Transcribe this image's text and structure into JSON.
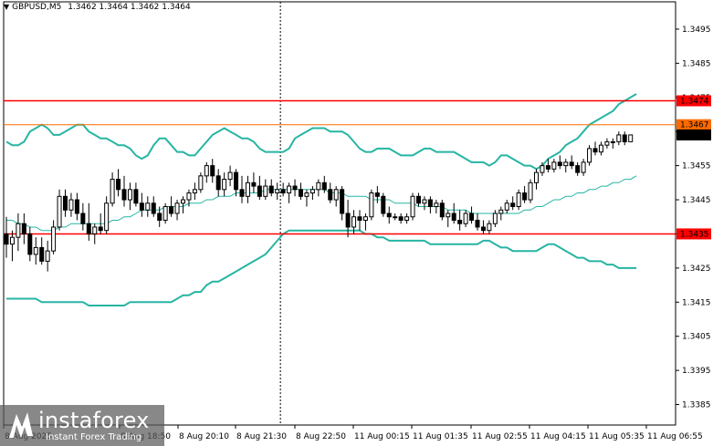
{
  "header": {
    "symbol": "GBPUSD,M5",
    "ohlc": "1.3462 1.3464 1.3462 1.3464"
  },
  "logo": {
    "brand": "instaforex",
    "tagline": "Instant Forex Trading"
  },
  "colors": {
    "background": "#ffffff",
    "candle": "#000000",
    "bands": "#26b5a3",
    "resistance": "#ff0000",
    "bid": "#ff6a00",
    "price_tag": "#000000"
  },
  "chart_data": {
    "type": "candlestick",
    "symbol": "GBPUSD",
    "timeframe": "M5",
    "ylim": [
      1.3379,
      1.3503
    ],
    "y_ticks": [
      "1.3495",
      "1.3485",
      "1.3475",
      "1.3465",
      "1.3455",
      "1.3445",
      "1.3435",
      "1.3425",
      "1.3415",
      "1.3405",
      "1.3395",
      "1.3385"
    ],
    "x_ticks": [
      "8 Aug 2025",
      "8 Aug 18:50",
      "8 Aug 20:10",
      "8 Aug 21:30",
      "8 Aug 22:50",
      "11 Aug 00:15",
      "11 Aug 01:35",
      "11 Aug 02:55",
      "11 Aug 04:15",
      "11 Aug 05:35",
      "11 Aug 06:55"
    ],
    "horizontal_levels": [
      {
        "value": 1.3474,
        "label": "1.3474",
        "color": "#ff0000"
      },
      {
        "value": 1.3467,
        "label": "1.3467",
        "color": "#ff6a00"
      },
      {
        "value": 1.3435,
        "label": "1.3435",
        "color": "#ff0000"
      }
    ],
    "current_price": {
      "value": 1.3464,
      "label": "1.3464"
    },
    "session_separator_index": 47,
    "candles": [
      {
        "o": 1.3435,
        "h": 1.344,
        "l": 1.3428,
        "c": 1.3432
      },
      {
        "o": 1.3432,
        "h": 1.3436,
        "l": 1.3427,
        "c": 1.3434
      },
      {
        "o": 1.3434,
        "h": 1.3441,
        "l": 1.343,
        "c": 1.3438
      },
      {
        "o": 1.3438,
        "h": 1.3441,
        "l": 1.3432,
        "c": 1.3435
      },
      {
        "o": 1.3435,
        "h": 1.3437,
        "l": 1.3427,
        "c": 1.3429
      },
      {
        "o": 1.3429,
        "h": 1.3434,
        "l": 1.3426,
        "c": 1.3431
      },
      {
        "o": 1.3431,
        "h": 1.3434,
        "l": 1.3426,
        "c": 1.3427
      },
      {
        "o": 1.3427,
        "h": 1.3433,
        "l": 1.3424,
        "c": 1.343
      },
      {
        "o": 1.343,
        "h": 1.3439,
        "l": 1.3429,
        "c": 1.3437
      },
      {
        "o": 1.3437,
        "h": 1.3448,
        "l": 1.3436,
        "c": 1.3446
      },
      {
        "o": 1.3446,
        "h": 1.3448,
        "l": 1.344,
        "c": 1.3442
      },
      {
        "o": 1.3442,
        "h": 1.3447,
        "l": 1.344,
        "c": 1.3445
      },
      {
        "o": 1.3445,
        "h": 1.3447,
        "l": 1.3439,
        "c": 1.3441
      },
      {
        "o": 1.3441,
        "h": 1.3444,
        "l": 1.3436,
        "c": 1.3438
      },
      {
        "o": 1.3438,
        "h": 1.3444,
        "l": 1.3433,
        "c": 1.3435
      },
      {
        "o": 1.3435,
        "h": 1.3438,
        "l": 1.3432,
        "c": 1.3437
      },
      {
        "o": 1.3437,
        "h": 1.3441,
        "l": 1.3435,
        "c": 1.3436
      },
      {
        "o": 1.3436,
        "h": 1.3446,
        "l": 1.3435,
        "c": 1.3444
      },
      {
        "o": 1.3444,
        "h": 1.3453,
        "l": 1.3443,
        "c": 1.3451
      },
      {
        "o": 1.3451,
        "h": 1.3454,
        "l": 1.3446,
        "c": 1.3448
      },
      {
        "o": 1.3448,
        "h": 1.3452,
        "l": 1.3443,
        "c": 1.3445
      },
      {
        "o": 1.3445,
        "h": 1.345,
        "l": 1.3442,
        "c": 1.3448
      },
      {
        "o": 1.3448,
        "h": 1.345,
        "l": 1.3443,
        "c": 1.3444
      },
      {
        "o": 1.3444,
        "h": 1.3447,
        "l": 1.344,
        "c": 1.3442
      },
      {
        "o": 1.3442,
        "h": 1.3446,
        "l": 1.344,
        "c": 1.3444
      },
      {
        "o": 1.3444,
        "h": 1.3446,
        "l": 1.344,
        "c": 1.3441
      },
      {
        "o": 1.3441,
        "h": 1.3443,
        "l": 1.3437,
        "c": 1.3439
      },
      {
        "o": 1.3439,
        "h": 1.3444,
        "l": 1.3438,
        "c": 1.3443
      },
      {
        "o": 1.3443,
        "h": 1.3446,
        "l": 1.344,
        "c": 1.3441
      },
      {
        "o": 1.3441,
        "h": 1.3445,
        "l": 1.3439,
        "c": 1.3444
      },
      {
        "o": 1.3444,
        "h": 1.3446,
        "l": 1.3441,
        "c": 1.3445
      },
      {
        "o": 1.3445,
        "h": 1.3448,
        "l": 1.3443,
        "c": 1.3447
      },
      {
        "o": 1.3447,
        "h": 1.345,
        "l": 1.3445,
        "c": 1.3448
      },
      {
        "o": 1.3448,
        "h": 1.3453,
        "l": 1.3447,
        "c": 1.3452
      },
      {
        "o": 1.3452,
        "h": 1.3456,
        "l": 1.345,
        "c": 1.3455
      },
      {
        "o": 1.3455,
        "h": 1.3457,
        "l": 1.345,
        "c": 1.3452
      },
      {
        "o": 1.3452,
        "h": 1.3454,
        "l": 1.3446,
        "c": 1.3448
      },
      {
        "o": 1.3448,
        "h": 1.3453,
        "l": 1.3446,
        "c": 1.3451
      },
      {
        "o": 1.3451,
        "h": 1.3455,
        "l": 1.3449,
        "c": 1.3453
      },
      {
        "o": 1.3453,
        "h": 1.3454,
        "l": 1.3446,
        "c": 1.3448
      },
      {
        "o": 1.3448,
        "h": 1.3452,
        "l": 1.3444,
        "c": 1.3446
      },
      {
        "o": 1.3446,
        "h": 1.3452,
        "l": 1.3444,
        "c": 1.345
      },
      {
        "o": 1.345,
        "h": 1.3453,
        "l": 1.3447,
        "c": 1.3449
      },
      {
        "o": 1.3449,
        "h": 1.3452,
        "l": 1.3445,
        "c": 1.3446
      },
      {
        "o": 1.3446,
        "h": 1.3451,
        "l": 1.3445,
        "c": 1.3449
      },
      {
        "o": 1.3449,
        "h": 1.3451,
        "l": 1.3446,
        "c": 1.3447
      },
      {
        "o": 1.3447,
        "h": 1.345,
        "l": 1.3445,
        "c": 1.3448
      },
      {
        "o": 1.3448,
        "h": 1.345,
        "l": 1.3446,
        "c": 1.3447
      },
      {
        "o": 1.3447,
        "h": 1.345,
        "l": 1.3444,
        "c": 1.3449
      },
      {
        "o": 1.3449,
        "h": 1.3451,
        "l": 1.3446,
        "c": 1.3448
      },
      {
        "o": 1.3448,
        "h": 1.345,
        "l": 1.3445,
        "c": 1.3446
      },
      {
        "o": 1.3446,
        "h": 1.3448,
        "l": 1.3443,
        "c": 1.3447
      },
      {
        "o": 1.3447,
        "h": 1.3449,
        "l": 1.3445,
        "c": 1.3448
      },
      {
        "o": 1.3448,
        "h": 1.3451,
        "l": 1.3446,
        "c": 1.345
      },
      {
        "o": 1.345,
        "h": 1.3452,
        "l": 1.3447,
        "c": 1.3448
      },
      {
        "o": 1.3448,
        "h": 1.345,
        "l": 1.3444,
        "c": 1.3445
      },
      {
        "o": 1.3445,
        "h": 1.3449,
        "l": 1.3443,
        "c": 1.3448
      },
      {
        "o": 1.3448,
        "h": 1.3449,
        "l": 1.3439,
        "c": 1.3441
      },
      {
        "o": 1.3441,
        "h": 1.3445,
        "l": 1.3434,
        "c": 1.3437
      },
      {
        "o": 1.3437,
        "h": 1.3442,
        "l": 1.3435,
        "c": 1.344
      },
      {
        "o": 1.344,
        "h": 1.3442,
        "l": 1.3436,
        "c": 1.3439
      },
      {
        "o": 1.3439,
        "h": 1.3441,
        "l": 1.3436,
        "c": 1.344
      },
      {
        "o": 1.344,
        "h": 1.3448,
        "l": 1.3439,
        "c": 1.3447
      },
      {
        "o": 1.3447,
        "h": 1.3449,
        "l": 1.3444,
        "c": 1.3446
      },
      {
        "o": 1.3446,
        "h": 1.3447,
        "l": 1.344,
        "c": 1.3441
      },
      {
        "o": 1.3441,
        "h": 1.3443,
        "l": 1.3438,
        "c": 1.344
      },
      {
        "o": 1.344,
        "h": 1.3441,
        "l": 1.3439,
        "c": 1.344
      },
      {
        "o": 1.344,
        "h": 1.3441,
        "l": 1.3438,
        "c": 1.3439
      },
      {
        "o": 1.3439,
        "h": 1.3441,
        "l": 1.3438,
        "c": 1.344
      },
      {
        "o": 1.344,
        "h": 1.3447,
        "l": 1.3439,
        "c": 1.3446
      },
      {
        "o": 1.3446,
        "h": 1.3447,
        "l": 1.3443,
        "c": 1.3444
      },
      {
        "o": 1.3444,
        "h": 1.3446,
        "l": 1.3442,
        "c": 1.3445
      },
      {
        "o": 1.3445,
        "h": 1.3446,
        "l": 1.3441,
        "c": 1.3443
      },
      {
        "o": 1.3443,
        "h": 1.3445,
        "l": 1.3441,
        "c": 1.3444
      },
      {
        "o": 1.3444,
        "h": 1.3445,
        "l": 1.3439,
        "c": 1.344
      },
      {
        "o": 1.344,
        "h": 1.3442,
        "l": 1.3437,
        "c": 1.3441
      },
      {
        "o": 1.3441,
        "h": 1.3444,
        "l": 1.3438,
        "c": 1.3439
      },
      {
        "o": 1.3439,
        "h": 1.3442,
        "l": 1.3436,
        "c": 1.3438
      },
      {
        "o": 1.3438,
        "h": 1.3442,
        "l": 1.3437,
        "c": 1.3441
      },
      {
        "o": 1.3441,
        "h": 1.3443,
        "l": 1.3438,
        "c": 1.3439
      },
      {
        "o": 1.3439,
        "h": 1.3441,
        "l": 1.3436,
        "c": 1.3437
      },
      {
        "o": 1.3437,
        "h": 1.3439,
        "l": 1.3435,
        "c": 1.3436
      },
      {
        "o": 1.3436,
        "h": 1.3439,
        "l": 1.3435,
        "c": 1.3438
      },
      {
        "o": 1.3438,
        "h": 1.3442,
        "l": 1.3437,
        "c": 1.3441
      },
      {
        "o": 1.3441,
        "h": 1.3443,
        "l": 1.3439,
        "c": 1.3442
      },
      {
        "o": 1.3442,
        "h": 1.3445,
        "l": 1.3441,
        "c": 1.3444
      },
      {
        "o": 1.3444,
        "h": 1.3446,
        "l": 1.3442,
        "c": 1.3443
      },
      {
        "o": 1.3443,
        "h": 1.3448,
        "l": 1.3442,
        "c": 1.3447
      },
      {
        "o": 1.3447,
        "h": 1.3449,
        "l": 1.3444,
        "c": 1.3445
      },
      {
        "o": 1.3445,
        "h": 1.3451,
        "l": 1.3444,
        "c": 1.345
      },
      {
        "o": 1.345,
        "h": 1.3454,
        "l": 1.3448,
        "c": 1.3453
      },
      {
        "o": 1.3453,
        "h": 1.3456,
        "l": 1.3452,
        "c": 1.3455
      },
      {
        "o": 1.3455,
        "h": 1.3457,
        "l": 1.3453,
        "c": 1.3454
      },
      {
        "o": 1.3454,
        "h": 1.3457,
        "l": 1.3453,
        "c": 1.3456
      },
      {
        "o": 1.3456,
        "h": 1.3458,
        "l": 1.3454,
        "c": 1.3455
      },
      {
        "o": 1.3455,
        "h": 1.3457,
        "l": 1.3453,
        "c": 1.3456
      },
      {
        "o": 1.3456,
        "h": 1.3458,
        "l": 1.3454,
        "c": 1.3455
      },
      {
        "o": 1.3455,
        "h": 1.3456,
        "l": 1.3452,
        "c": 1.3453
      },
      {
        "o": 1.3453,
        "h": 1.3457,
        "l": 1.3452,
        "c": 1.3456
      },
      {
        "o": 1.3456,
        "h": 1.3461,
        "l": 1.3455,
        "c": 1.346
      },
      {
        "o": 1.346,
        "h": 1.3462,
        "l": 1.3458,
        "c": 1.3459
      },
      {
        "o": 1.3459,
        "h": 1.3462,
        "l": 1.3458,
        "c": 1.3461
      },
      {
        "o": 1.3461,
        "h": 1.3463,
        "l": 1.346,
        "c": 1.3462
      },
      {
        "o": 1.3462,
        "h": 1.3463,
        "l": 1.346,
        "c": 1.3462
      },
      {
        "o": 1.3462,
        "h": 1.3465,
        "l": 1.3461,
        "c": 1.3464
      },
      {
        "o": 1.3464,
        "h": 1.3465,
        "l": 1.3461,
        "c": 1.3462
      },
      {
        "o": 1.3462,
        "h": 1.3464,
        "l": 1.3462,
        "c": 1.3464
      }
    ],
    "bollinger": {
      "period": 20,
      "upper": [
        1.3462,
        1.3461,
        1.3461,
        1.3462,
        1.3465,
        1.3466,
        1.3467,
        1.3466,
        1.3464,
        1.3464,
        1.3465,
        1.3466,
        1.3467,
        1.3467,
        1.3465,
        1.3464,
        1.3463,
        1.3463,
        1.3462,
        1.3461,
        1.3461,
        1.346,
        1.3458,
        1.3457,
        1.3458,
        1.3461,
        1.3463,
        1.3463,
        1.3461,
        1.3459,
        1.3459,
        1.3458,
        1.3458,
        1.346,
        1.3462,
        1.3464,
        1.3465,
        1.3466,
        1.3465,
        1.3464,
        1.3463,
        1.3463,
        1.3462,
        1.346,
        1.3459,
        1.3459,
        1.3459,
        1.3459,
        1.346,
        1.3463,
        1.3464,
        1.3465,
        1.3466,
        1.3466,
        1.3466,
        1.3465,
        1.3465,
        1.3465,
        1.3464,
        1.3462,
        1.346,
        1.3459,
        1.3459,
        1.346,
        1.346,
        1.346,
        1.3459,
        1.3458,
        1.3458,
        1.3458,
        1.3459,
        1.346,
        1.346,
        1.3459,
        1.3459,
        1.3459,
        1.3459,
        1.3458,
        1.3457,
        1.3456,
        1.3456,
        1.3456,
        1.3455,
        1.3456,
        1.3458,
        1.3458,
        1.3457,
        1.3456,
        1.3455,
        1.3455,
        1.3454,
        1.3455,
        1.3457,
        1.3458,
        1.3459,
        1.3461,
        1.3462,
        1.3463,
        1.3465,
        1.3467,
        1.3468,
        1.3469,
        1.347,
        1.3471,
        1.3473,
        1.3474,
        1.3475,
        1.3476
      ],
      "middle": [
        1.3439,
        1.3439,
        1.3438,
        1.3438,
        1.3437,
        1.3437,
        1.3436,
        1.3436,
        1.3436,
        1.3437,
        1.3437,
        1.3438,
        1.3438,
        1.3438,
        1.3438,
        1.3438,
        1.3438,
        1.3438,
        1.3439,
        1.3439,
        1.344,
        1.344,
        1.3441,
        1.3442,
        1.3442,
        1.3442,
        1.3442,
        1.3443,
        1.3443,
        1.3443,
        1.3443,
        1.3444,
        1.3444,
        1.3444,
        1.3445,
        1.3445,
        1.3446,
        1.3446,
        1.3446,
        1.3447,
        1.3447,
        1.3447,
        1.3447,
        1.3447,
        1.3448,
        1.3448,
        1.3448,
        1.3448,
        1.3448,
        1.3448,
        1.3448,
        1.3448,
        1.3448,
        1.3448,
        1.3448,
        1.3447,
        1.3447,
        1.3447,
        1.3446,
        1.3446,
        1.3446,
        1.3446,
        1.3445,
        1.3445,
        1.3445,
        1.3445,
        1.3444,
        1.3444,
        1.3444,
        1.3444,
        1.3443,
        1.3443,
        1.3443,
        1.3443,
        1.3443,
        1.3442,
        1.3442,
        1.3442,
        1.3442,
        1.3441,
        1.3441,
        1.3441,
        1.3441,
        1.3441,
        1.3441,
        1.3441,
        1.3441,
        1.3441,
        1.3442,
        1.3442,
        1.3443,
        1.3443,
        1.3444,
        1.3445,
        1.3445,
        1.3446,
        1.3446,
        1.3447,
        1.3447,
        1.3448,
        1.3448,
        1.3449,
        1.3449,
        1.345,
        1.345,
        1.3451,
        1.3451,
        1.3452
      ],
      "lower": [
        1.3416,
        1.3416,
        1.3416,
        1.3416,
        1.3416,
        1.3416,
        1.3415,
        1.3415,
        1.3415,
        1.3415,
        1.3415,
        1.3415,
        1.3415,
        1.3415,
        1.3414,
        1.3414,
        1.3414,
        1.3414,
        1.3414,
        1.3414,
        1.3414,
        1.3415,
        1.3415,
        1.3415,
        1.3415,
        1.3415,
        1.3415,
        1.3415,
        1.3415,
        1.3416,
        1.3417,
        1.3417,
        1.3418,
        1.3418,
        1.342,
        1.3421,
        1.3421,
        1.3422,
        1.3423,
        1.3424,
        1.3425,
        1.3426,
        1.3427,
        1.3428,
        1.3429,
        1.3431,
        1.3433,
        1.3435,
        1.3436,
        1.3436,
        1.3436,
        1.3436,
        1.3436,
        1.3436,
        1.3436,
        1.3436,
        1.3436,
        1.3436,
        1.3436,
        1.3436,
        1.3436,
        1.3435,
        1.3435,
        1.3434,
        1.3434,
        1.3433,
        1.3433,
        1.3433,
        1.3433,
        1.3433,
        1.3433,
        1.3433,
        1.3432,
        1.3432,
        1.3432,
        1.3432,
        1.3432,
        1.3432,
        1.3432,
        1.3432,
        1.3432,
        1.3433,
        1.3433,
        1.3432,
        1.3431,
        1.3431,
        1.343,
        1.343,
        1.343,
        1.343,
        1.343,
        1.3431,
        1.3432,
        1.3432,
        1.3431,
        1.343,
        1.3429,
        1.3428,
        1.3428,
        1.3427,
        1.3427,
        1.3427,
        1.3426,
        1.3426,
        1.3425,
        1.3425,
        1.3425,
        1.3425
      ]
    }
  }
}
